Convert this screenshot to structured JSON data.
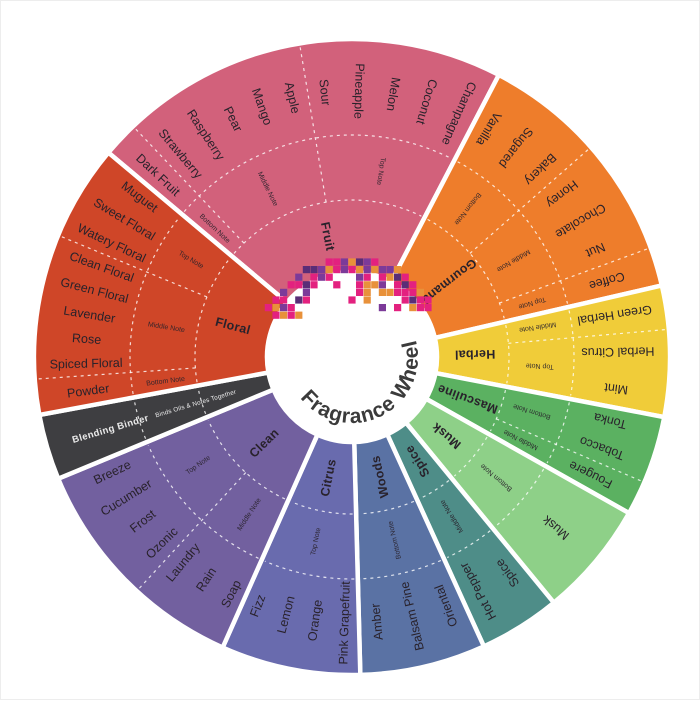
{
  "center": {
    "title": "Fragrance Wheel",
    "title_color": "#3b3b3b",
    "circle_color": "#ffffff",
    "mosaic_palette": [
      "#e3217f",
      "#7c3a99",
      "#5a2d77",
      "#e8913a"
    ]
  },
  "label_color": "#29222b",
  "gap_color": "#ffffff",
  "segments": [
    {
      "name": "Fruit",
      "color": "#d2617b",
      "start": -50,
      "end": 27.5,
      "groups": [
        {
          "note": "Bottom Note",
          "start": -50,
          "end": -43.5,
          "labels": [
            "Dark Fruit"
          ]
        },
        {
          "note": "Middle Note",
          "start": -43.5,
          "end": -9.5,
          "labels": [
            "Strawberry",
            "Raspberry",
            "Pear",
            "Mango",
            "Apple"
          ]
        },
        {
          "note": "Top Note",
          "start": -9.5,
          "end": 27.5,
          "labels": [
            "Sour",
            "Pineapple",
            "Melon",
            "Coconut",
            "Champagne"
          ]
        }
      ]
    },
    {
      "name": "Gourmand",
      "color": "#ee7d2b",
      "start": 27.5,
      "end": 77,
      "groups": [
        {
          "note": "Bottom Note",
          "start": 27.5,
          "end": 48.7,
          "labels": [
            "Vanilla",
            "Sugared",
            "Bakery"
          ]
        },
        {
          "note": "Middle Note",
          "start": 48.7,
          "end": 69.9,
          "labels": [
            "Honey",
            "Chocolate",
            "Nut"
          ]
        },
        {
          "note": "Top Note",
          "start": 69.9,
          "end": 77,
          "labels": [
            "Coffee"
          ]
        }
      ]
    },
    {
      "name": "Herbal",
      "color": "#f0cc39",
      "start": 77,
      "end": 100.9,
      "groups": [
        {
          "note": "Middle Note",
          "start": 77,
          "end": 85,
          "labels": [
            "Green Herbal"
          ]
        },
        {
          "note": "Top Note",
          "start": 85,
          "end": 100.9,
          "labels": [
            "Herbal Citrus",
            "Mint"
          ]
        }
      ]
    },
    {
      "name": "Masculine",
      "color": "#5bb161",
      "start": 100.9,
      "end": 119.4,
      "groups": [
        {
          "note": "Bottom Note",
          "start": 100.9,
          "end": 113.2,
          "labels": [
            "Tonka",
            "Tobacco"
          ]
        },
        {
          "note": "Middle Note",
          "start": 113.2,
          "end": 119.4,
          "labels": [
            "Fougere"
          ]
        }
      ]
    },
    {
      "name": "Musk",
      "color": "#8ed088",
      "start": 119.4,
      "end": 140.6,
      "groups": [
        {
          "note": "Bottom Note",
          "start": 119.4,
          "end": 140.6,
          "labels": [
            "Musk"
          ]
        }
      ]
    },
    {
      "name": "Spice",
      "color": "#4e8d88",
      "start": 140.6,
      "end": 155.5,
      "groups": [
        {
          "note": "Middle Note",
          "start": 140.6,
          "end": 155.5,
          "labels": [
            "Spice",
            "Hot Pepper"
          ]
        }
      ]
    },
    {
      "name": "Woods",
      "color": "#5a72a4",
      "start": 155.5,
      "end": 178.5,
      "groups": [
        {
          "note": "Bottom Note",
          "start": 155.5,
          "end": 178.5,
          "labels": [
            "Oriental",
            "Balsam Pine",
            "Amber"
          ]
        }
      ]
    },
    {
      "name": "Citrus",
      "color": "#696bae",
      "start": 178.5,
      "end": 204,
      "groups": [
        {
          "note": "Top Note",
          "start": 178.5,
          "end": 204,
          "labels": [
            "Pink Grapefruit",
            "Orange",
            "Lemon",
            "Fizz"
          ]
        }
      ]
    },
    {
      "name": "Clean",
      "color": "#72609f",
      "start": 204,
      "end": 247.5,
      "groups": [
        {
          "note": "Middle Note",
          "start": 204,
          "end": 222.6,
          "labels": [
            "Soap",
            "Rain",
            "Laundry"
          ]
        },
        {
          "note": "Top Note",
          "start": 222.6,
          "end": 247.5,
          "labels": [
            "Ozonic",
            "Frost",
            "Cucumber",
            "Breeze"
          ]
        }
      ]
    },
    {
      "name": "Blending Binder",
      "color": "#3e3e41",
      "start": 247.5,
      "end": 259.5,
      "text_color": "#ebebeb",
      "description": "Binds Oils & Notes Together",
      "groups": []
    },
    {
      "name": "Floral",
      "color": "#cf4628",
      "start": 259.5,
      "end": 310,
      "groups": [
        {
          "note": "Bottom Note",
          "start": 259.5,
          "end": 266,
          "labels": [
            "Powder"
          ]
        },
        {
          "note": "Middle Note",
          "start": 266,
          "end": 292.5,
          "labels": [
            "Spiced Floral",
            "Rose",
            "Lavender",
            "Green Floral",
            "Clean Floral"
          ]
        },
        {
          "note": "Top Note",
          "start": 292.5,
          "end": 310,
          "labels": [
            "Watery Floral",
            "Sweet Floral",
            "Muguet"
          ]
        }
      ]
    }
  ]
}
